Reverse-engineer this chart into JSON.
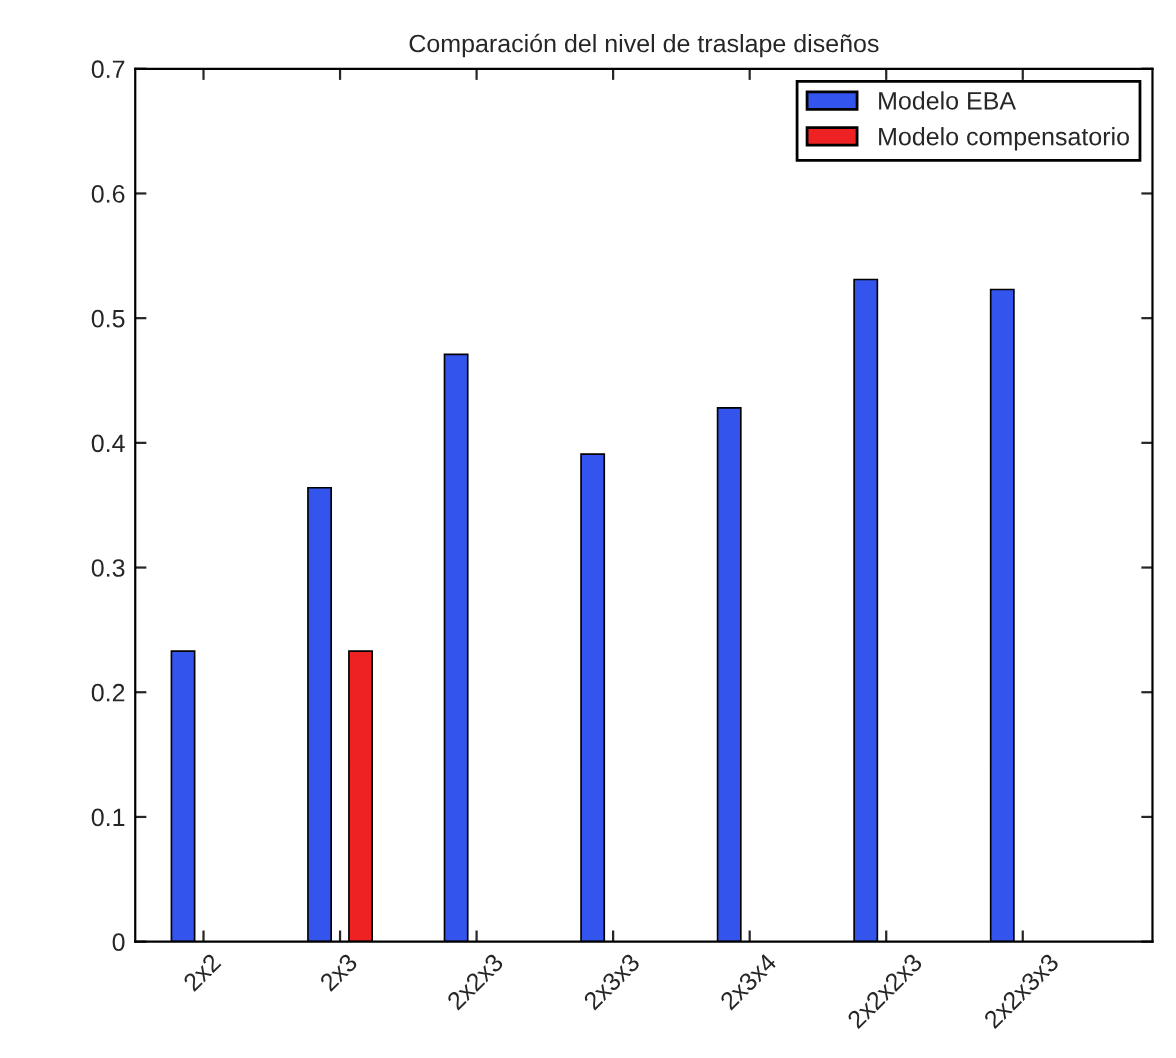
{
  "chart_data": {
    "type": "bar",
    "title": "Comparación del nivel de traslape diseños",
    "categories": [
      "2x2",
      "2x3",
      "2x2x3",
      "2x3x3",
      "2x3x4",
      "2x2x2x3",
      "2x2x3x3"
    ],
    "series": [
      {
        "name": "Modelo EBA",
        "color": "#3355ee",
        "values": [
          0.233,
          0.364,
          0.471,
          0.391,
          0.428,
          0.531,
          0.523
        ]
      },
      {
        "name": "Modelo compensatorio",
        "color": "#ee2222",
        "values": [
          null,
          0.233,
          null,
          null,
          null,
          null,
          null
        ]
      }
    ],
    "ylim": [
      0,
      0.7
    ],
    "yticks": [
      0,
      0.1,
      0.2,
      0.3,
      0.4,
      0.5,
      0.6,
      0.7
    ],
    "grid": false,
    "legend": "top right"
  }
}
